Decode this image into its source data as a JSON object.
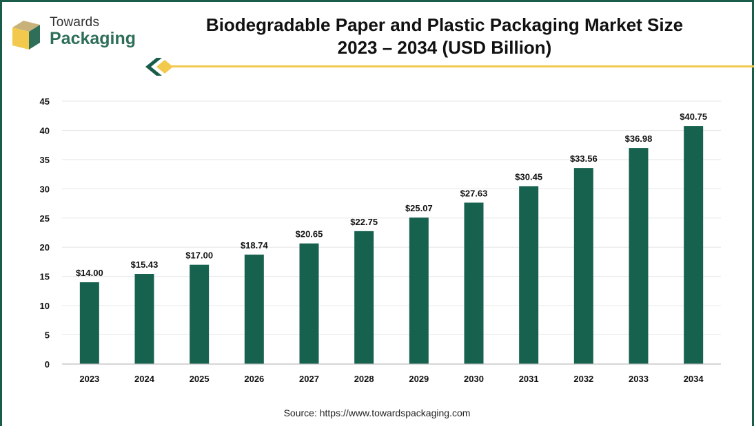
{
  "logo": {
    "line1": "Towards",
    "line2": "Packaging"
  },
  "title_line1": "Biodegradable Paper and Plastic Packaging Market Size",
  "title_line2": "2023 – 2034 (USD Billion)",
  "source": "Source: https://www.towardspackaging.com",
  "colors": {
    "bar": "#17624f",
    "frame": "#1a5c4a",
    "accent": "#f2c94c",
    "grid": "#e6e6e6"
  },
  "chart_data": {
    "type": "bar",
    "title": "Biodegradable Paper and Plastic Packaging Market Size 2023 – 2034 (USD Billion)",
    "xlabel": "",
    "ylabel": "",
    "categories": [
      "2023",
      "2024",
      "2025",
      "2026",
      "2027",
      "2028",
      "2029",
      "2030",
      "2031",
      "2032",
      "2033",
      "2034"
    ],
    "values": [
      14.0,
      15.43,
      17.0,
      18.74,
      20.65,
      22.75,
      25.07,
      27.63,
      30.45,
      33.56,
      36.98,
      40.75
    ],
    "data_labels": [
      "$14.00",
      "$15.43",
      "$17.00",
      "$18.74",
      "$20.65",
      "$22.75",
      "$25.07",
      "$27.63",
      "$30.45",
      "$33.56",
      "$36.98",
      "$40.75"
    ],
    "yticks": [
      0,
      5,
      10,
      15,
      20,
      25,
      30,
      35,
      40,
      45
    ],
    "ylim": [
      0,
      45
    ],
    "grid": true,
    "legend": "none"
  }
}
